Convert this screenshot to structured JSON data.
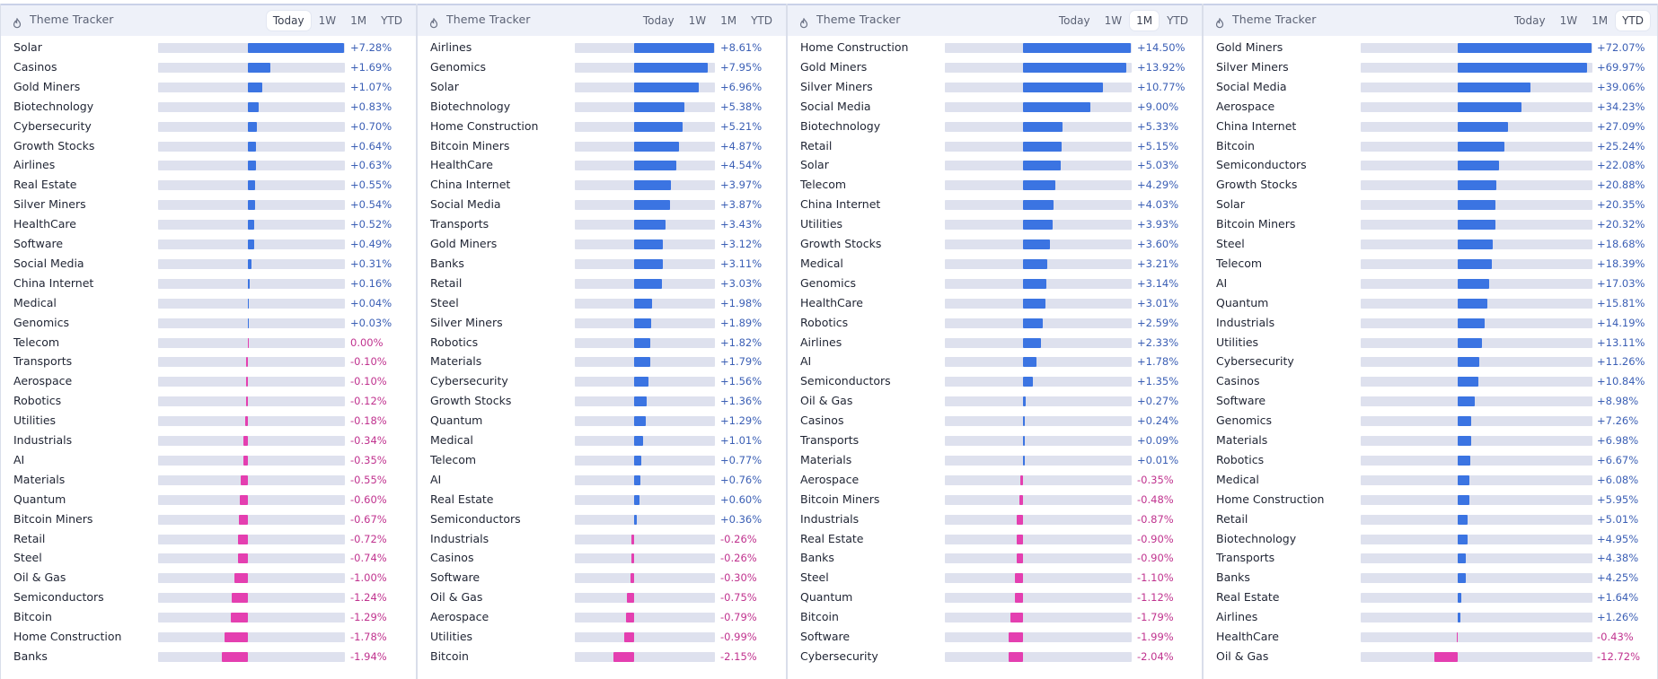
{
  "app": {
    "title": "Theme Tracker"
  },
  "colors": {
    "positive": "#3b74e2",
    "negative": "#e43fb0",
    "positive_text": "#3b5fb5",
    "negative_text": "#c0338f"
  },
  "panels": [
    {
      "title": "Theme Tracker",
      "tabs": [
        "Today",
        "1W",
        "1M",
        "YTD"
      ],
      "active_tab": "Today",
      "scale_max": 7.28,
      "rows": [
        {
          "label": "Solar",
          "value": 7.28,
          "display": "+7.28%"
        },
        {
          "label": "Casinos",
          "value": 1.69,
          "display": "+1.69%"
        },
        {
          "label": "Gold Miners",
          "value": 1.07,
          "display": "+1.07%"
        },
        {
          "label": "Biotechnology",
          "value": 0.83,
          "display": "+0.83%"
        },
        {
          "label": "Cybersecurity",
          "value": 0.7,
          "display": "+0.70%"
        },
        {
          "label": "Growth Stocks",
          "value": 0.64,
          "display": "+0.64%"
        },
        {
          "label": "Airlines",
          "value": 0.63,
          "display": "+0.63%"
        },
        {
          "label": "Real Estate",
          "value": 0.55,
          "display": "+0.55%"
        },
        {
          "label": "Silver Miners",
          "value": 0.54,
          "display": "+0.54%"
        },
        {
          "label": "HealthCare",
          "value": 0.52,
          "display": "+0.52%"
        },
        {
          "label": "Software",
          "value": 0.49,
          "display": "+0.49%"
        },
        {
          "label": "Social Media",
          "value": 0.31,
          "display": "+0.31%"
        },
        {
          "label": "China Internet",
          "value": 0.16,
          "display": "+0.16%"
        },
        {
          "label": "Medical",
          "value": 0.04,
          "display": "+0.04%"
        },
        {
          "label": "Genomics",
          "value": 0.03,
          "display": "+0.03%"
        },
        {
          "label": "Telecom",
          "value": 0.0,
          "display": "0.00%"
        },
        {
          "label": "Transports",
          "value": -0.1,
          "display": "-0.10%"
        },
        {
          "label": "Aerospace",
          "value": -0.1,
          "display": "-0.10%"
        },
        {
          "label": "Robotics",
          "value": -0.12,
          "display": "-0.12%"
        },
        {
          "label": "Utilities",
          "value": -0.18,
          "display": "-0.18%"
        },
        {
          "label": "Industrials",
          "value": -0.34,
          "display": "-0.34%"
        },
        {
          "label": "AI",
          "value": -0.35,
          "display": "-0.35%"
        },
        {
          "label": "Materials",
          "value": -0.55,
          "display": "-0.55%"
        },
        {
          "label": "Quantum",
          "value": -0.6,
          "display": "-0.60%"
        },
        {
          "label": "Bitcoin Miners",
          "value": -0.67,
          "display": "-0.67%"
        },
        {
          "label": "Retail",
          "value": -0.72,
          "display": "-0.72%"
        },
        {
          "label": "Steel",
          "value": -0.74,
          "display": "-0.74%"
        },
        {
          "label": "Oil & Gas",
          "value": -1.0,
          "display": "-1.00%"
        },
        {
          "label": "Semiconductors",
          "value": -1.24,
          "display": "-1.24%"
        },
        {
          "label": "Bitcoin",
          "value": -1.29,
          "display": "-1.29%"
        },
        {
          "label": "Home Construction",
          "value": -1.78,
          "display": "-1.78%"
        },
        {
          "label": "Banks",
          "value": -1.94,
          "display": "-1.94%"
        }
      ]
    },
    {
      "title": "Theme Tracker",
      "tabs": [
        "Today",
        "1W",
        "1M",
        "YTD"
      ],
      "active_tab": "",
      "scale_max": 8.61,
      "rows": [
        {
          "label": "Airlines",
          "value": 8.61,
          "display": "+8.61%"
        },
        {
          "label": "Genomics",
          "value": 7.95,
          "display": "+7.95%"
        },
        {
          "label": "Solar",
          "value": 6.96,
          "display": "+6.96%"
        },
        {
          "label": "Biotechnology",
          "value": 5.38,
          "display": "+5.38%"
        },
        {
          "label": "Home Construction",
          "value": 5.21,
          "display": "+5.21%"
        },
        {
          "label": "Bitcoin Miners",
          "value": 4.87,
          "display": "+4.87%"
        },
        {
          "label": "HealthCare",
          "value": 4.54,
          "display": "+4.54%"
        },
        {
          "label": "China Internet",
          "value": 3.97,
          "display": "+3.97%"
        },
        {
          "label": "Social Media",
          "value": 3.87,
          "display": "+3.87%"
        },
        {
          "label": "Transports",
          "value": 3.43,
          "display": "+3.43%"
        },
        {
          "label": "Gold Miners",
          "value": 3.12,
          "display": "+3.12%"
        },
        {
          "label": "Banks",
          "value": 3.11,
          "display": "+3.11%"
        },
        {
          "label": "Retail",
          "value": 3.03,
          "display": "+3.03%"
        },
        {
          "label": "Steel",
          "value": 1.98,
          "display": "+1.98%"
        },
        {
          "label": "Silver Miners",
          "value": 1.89,
          "display": "+1.89%"
        },
        {
          "label": "Robotics",
          "value": 1.82,
          "display": "+1.82%"
        },
        {
          "label": "Materials",
          "value": 1.79,
          "display": "+1.79%"
        },
        {
          "label": "Cybersecurity",
          "value": 1.56,
          "display": "+1.56%"
        },
        {
          "label": "Growth Stocks",
          "value": 1.36,
          "display": "+1.36%"
        },
        {
          "label": "Quantum",
          "value": 1.29,
          "display": "+1.29%"
        },
        {
          "label": "Medical",
          "value": 1.01,
          "display": "+1.01%"
        },
        {
          "label": "Telecom",
          "value": 0.77,
          "display": "+0.77%"
        },
        {
          "label": "AI",
          "value": 0.76,
          "display": "+0.76%"
        },
        {
          "label": "Real Estate",
          "value": 0.6,
          "display": "+0.60%"
        },
        {
          "label": "Semiconductors",
          "value": 0.36,
          "display": "+0.36%"
        },
        {
          "label": "Industrials",
          "value": -0.26,
          "display": "-0.26%"
        },
        {
          "label": "Casinos",
          "value": -0.26,
          "display": "-0.26%"
        },
        {
          "label": "Software",
          "value": -0.3,
          "display": "-0.30%"
        },
        {
          "label": "Oil & Gas",
          "value": -0.75,
          "display": "-0.75%"
        },
        {
          "label": "Aerospace",
          "value": -0.79,
          "display": "-0.79%"
        },
        {
          "label": "Utilities",
          "value": -0.99,
          "display": "-0.99%"
        },
        {
          "label": "Bitcoin",
          "value": -2.15,
          "display": "-2.15%"
        }
      ]
    },
    {
      "title": "Theme Tracker",
      "tabs": [
        "Today",
        "1W",
        "1M",
        "YTD"
      ],
      "active_tab": "1M",
      "scale_max": 14.5,
      "rows": [
        {
          "label": "Home Construction",
          "value": 14.5,
          "display": "+14.50%"
        },
        {
          "label": "Gold Miners",
          "value": 13.92,
          "display": "+13.92%"
        },
        {
          "label": "Silver Miners",
          "value": 10.77,
          "display": "+10.77%"
        },
        {
          "label": "Social Media",
          "value": 9.0,
          "display": "+9.00%"
        },
        {
          "label": "Biotechnology",
          "value": 5.33,
          "display": "+5.33%"
        },
        {
          "label": "Retail",
          "value": 5.15,
          "display": "+5.15%"
        },
        {
          "label": "Solar",
          "value": 5.03,
          "display": "+5.03%"
        },
        {
          "label": "Telecom",
          "value": 4.29,
          "display": "+4.29%"
        },
        {
          "label": "China Internet",
          "value": 4.03,
          "display": "+4.03%"
        },
        {
          "label": "Utilities",
          "value": 3.93,
          "display": "+3.93%"
        },
        {
          "label": "Growth Stocks",
          "value": 3.6,
          "display": "+3.60%"
        },
        {
          "label": "Medical",
          "value": 3.21,
          "display": "+3.21%"
        },
        {
          "label": "Genomics",
          "value": 3.14,
          "display": "+3.14%"
        },
        {
          "label": "HealthCare",
          "value": 3.01,
          "display": "+3.01%"
        },
        {
          "label": "Robotics",
          "value": 2.59,
          "display": "+2.59%"
        },
        {
          "label": "Airlines",
          "value": 2.33,
          "display": "+2.33%"
        },
        {
          "label": "AI",
          "value": 1.78,
          "display": "+1.78%"
        },
        {
          "label": "Semiconductors",
          "value": 1.35,
          "display": "+1.35%"
        },
        {
          "label": "Oil & Gas",
          "value": 0.27,
          "display": "+0.27%"
        },
        {
          "label": "Casinos",
          "value": 0.24,
          "display": "+0.24%"
        },
        {
          "label": "Transports",
          "value": 0.09,
          "display": "+0.09%"
        },
        {
          "label": "Materials",
          "value": 0.01,
          "display": "+0.01%"
        },
        {
          "label": "Aerospace",
          "value": -0.35,
          "display": "-0.35%"
        },
        {
          "label": "Bitcoin Miners",
          "value": -0.48,
          "display": "-0.48%"
        },
        {
          "label": "Industrials",
          "value": -0.87,
          "display": "-0.87%"
        },
        {
          "label": "Real Estate",
          "value": -0.9,
          "display": "-0.90%"
        },
        {
          "label": "Banks",
          "value": -0.9,
          "display": "-0.90%"
        },
        {
          "label": "Steel",
          "value": -1.1,
          "display": "-1.10%"
        },
        {
          "label": "Quantum",
          "value": -1.12,
          "display": "-1.12%"
        },
        {
          "label": "Bitcoin",
          "value": -1.79,
          "display": "-1.79%"
        },
        {
          "label": "Software",
          "value": -1.99,
          "display": "-1.99%"
        },
        {
          "label": "Cybersecurity",
          "value": -2.04,
          "display": "-2.04%"
        }
      ]
    },
    {
      "title": "Theme Tracker",
      "tabs": [
        "Today",
        "1W",
        "1M",
        "YTD"
      ],
      "active_tab": "YTD",
      "scale_max": 72.07,
      "rows": [
        {
          "label": "Gold Miners",
          "value": 72.07,
          "display": "+72.07%"
        },
        {
          "label": "Silver Miners",
          "value": 69.97,
          "display": "+69.97%"
        },
        {
          "label": "Social Media",
          "value": 39.06,
          "display": "+39.06%"
        },
        {
          "label": "Aerospace",
          "value": 34.23,
          "display": "+34.23%"
        },
        {
          "label": "China Internet",
          "value": 27.09,
          "display": "+27.09%"
        },
        {
          "label": "Bitcoin",
          "value": 25.24,
          "display": "+25.24%"
        },
        {
          "label": "Semiconductors",
          "value": 22.08,
          "display": "+22.08%"
        },
        {
          "label": "Growth Stocks",
          "value": 20.88,
          "display": "+20.88%"
        },
        {
          "label": "Solar",
          "value": 20.35,
          "display": "+20.35%"
        },
        {
          "label": "Bitcoin Miners",
          "value": 20.32,
          "display": "+20.32%"
        },
        {
          "label": "Steel",
          "value": 18.68,
          "display": "+18.68%"
        },
        {
          "label": "Telecom",
          "value": 18.39,
          "display": "+18.39%"
        },
        {
          "label": "AI",
          "value": 17.03,
          "display": "+17.03%"
        },
        {
          "label": "Quantum",
          "value": 15.81,
          "display": "+15.81%"
        },
        {
          "label": "Industrials",
          "value": 14.19,
          "display": "+14.19%"
        },
        {
          "label": "Utilities",
          "value": 13.11,
          "display": "+13.11%"
        },
        {
          "label": "Cybersecurity",
          "value": 11.26,
          "display": "+11.26%"
        },
        {
          "label": "Casinos",
          "value": 10.84,
          "display": "+10.84%"
        },
        {
          "label": "Software",
          "value": 8.98,
          "display": "+8.98%"
        },
        {
          "label": "Genomics",
          "value": 7.26,
          "display": "+7.26%"
        },
        {
          "label": "Materials",
          "value": 6.98,
          "display": "+6.98%"
        },
        {
          "label": "Robotics",
          "value": 6.67,
          "display": "+6.67%"
        },
        {
          "label": "Medical",
          "value": 6.08,
          "display": "+6.08%"
        },
        {
          "label": "Home Construction",
          "value": 5.95,
          "display": "+5.95%"
        },
        {
          "label": "Retail",
          "value": 5.01,
          "display": "+5.01%"
        },
        {
          "label": "Biotechnology",
          "value": 4.95,
          "display": "+4.95%"
        },
        {
          "label": "Transports",
          "value": 4.38,
          "display": "+4.38%"
        },
        {
          "label": "Banks",
          "value": 4.25,
          "display": "+4.25%"
        },
        {
          "label": "Real Estate",
          "value": 1.64,
          "display": "+1.64%"
        },
        {
          "label": "Airlines",
          "value": 1.26,
          "display": "+1.26%"
        },
        {
          "label": "HealthCare",
          "value": -0.43,
          "display": "-0.43%"
        },
        {
          "label": "Oil & Gas",
          "value": -12.72,
          "display": "-12.72%"
        }
      ]
    }
  ]
}
